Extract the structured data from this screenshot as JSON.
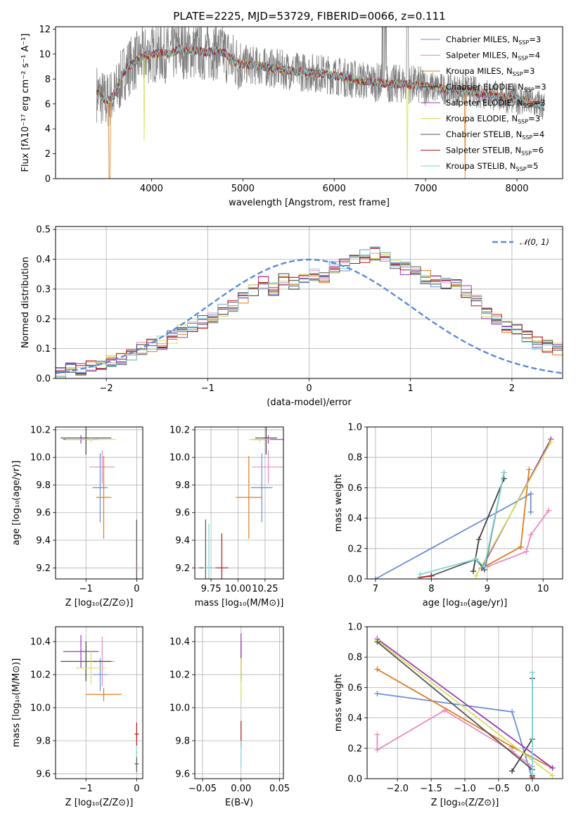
{
  "figure": {
    "title": "PLATE=2225, MJD=53729, FIBERID=0066, z=0.111"
  },
  "palette": {
    "chabrier_miles": "#6b8fd6",
    "salpeter_miles": "#e88ac0",
    "kroupa_miles": "#e07b20",
    "chabrier_elodie": "#3f3f3f",
    "salpeter_elodie": "#9b37b6",
    "kroupa_elodie": "#d4e25a",
    "chabrier_stelib": "#555555",
    "salpeter_stelib": "#b01a1a",
    "kroupa_stelib": "#7fd6d6",
    "gauss": "#5b8bd9",
    "data": "#808080",
    "grid": "#b0b0b0"
  },
  "chart_data": [
    {
      "id": "spectrum",
      "type": "line",
      "xlabel": "wavelength [Angstrom, rest frame]",
      "ylabel": "Flux [fλ10⁻¹⁷ erg cm⁻² s⁻¹ A⁻¹]",
      "xlim": [
        2950,
        8500
      ],
      "ylim": [
        0,
        12.2
      ],
      "xticks": [
        4000,
        5000,
        6000,
        7000,
        8000
      ],
      "yticks": [
        0,
        2,
        4,
        6,
        8,
        10,
        12
      ],
      "grid": false,
      "legend_position": "top-right",
      "continuum": {
        "x": [
          3400,
          3500,
          3600,
          3700,
          3800,
          3900,
          4000,
          4100,
          4200,
          4300,
          4400,
          4500,
          4600,
          4700,
          4800,
          4900,
          5000,
          5200,
          5400,
          5600,
          5800,
          6000,
          6200,
          6400,
          6600,
          6800,
          7000,
          7200,
          7400,
          7600,
          7800,
          8000,
          8200,
          8300
        ],
        "y": [
          6.9,
          6.2,
          6.7,
          8.6,
          9.3,
          9.8,
          10.0,
          10.1,
          10.0,
          10.4,
          10.3,
          10.3,
          10.1,
          10.3,
          10.1,
          9.4,
          9.2,
          9.0,
          8.8,
          8.6,
          8.5,
          8.3,
          8.0,
          7.8,
          7.6,
          7.6,
          7.4,
          7.2,
          7.1,
          6.9,
          6.6,
          6.4,
          6.0,
          5.8
        ]
      },
      "model_dips": [
        {
          "series": "kroupa_miles",
          "x": 3540,
          "y": 0
        },
        {
          "series": "kroupa_elodie",
          "x": 3920,
          "y": 3.0
        },
        {
          "series": "kroupa_elodie",
          "x": 6800,
          "y": 0
        },
        {
          "series": "kroupa_miles",
          "x": 7430,
          "y": 0
        }
      ],
      "series": [
        {
          "name": "Chabrier MILES, N",
          "sub": "SSP",
          "suffix": "=3",
          "color_key": "chabrier_miles"
        },
        {
          "name": "Salpeter MILES, N",
          "sub": "SSP",
          "suffix": "=4",
          "color_key": "salpeter_miles"
        },
        {
          "name": "Kroupa MILES, N",
          "sub": "SSP",
          "suffix": "=3",
          "color_key": "kroupa_miles"
        },
        {
          "name": "Chabrier ELODIE, N",
          "sub": "SSP",
          "suffix": "=3",
          "color_key": "chabrier_elodie"
        },
        {
          "name": "Salpeter ELODIE, N",
          "sub": "SSP",
          "suffix": "=3",
          "color_key": "salpeter_elodie"
        },
        {
          "name": "Kroupa ELODIE, N",
          "sub": "SSP",
          "suffix": "=3",
          "color_key": "kroupa_elodie"
        },
        {
          "name": "Chabrier STELIB, N",
          "sub": "SSP",
          "suffix": "=4",
          "color_key": "chabrier_stelib"
        },
        {
          "name": "Salpeter STELIB, N",
          "sub": "SSP",
          "suffix": "=6",
          "color_key": "salpeter_stelib"
        },
        {
          "name": "Kroupa STELIB, N",
          "sub": "SSP",
          "suffix": "=5",
          "color_key": "kroupa_stelib"
        }
      ]
    },
    {
      "id": "residuals",
      "type": "histogram",
      "xlabel": "(data-model)/error",
      "ylabel": "Normed distribution",
      "xlim": [
        -2.5,
        2.5
      ],
      "ylim": [
        0,
        0.51
      ],
      "xticks": [
        -2,
        -1,
        0,
        1,
        2
      ],
      "yticks": [
        0.0,
        0.1,
        0.2,
        0.3,
        0.4,
        0.5
      ],
      "grid": true,
      "legend": "𝒩(0, 1)",
      "bin_width": 0.1,
      "bins_start": -2.5,
      "mean_values": [
        0.02,
        0.03,
        0.03,
        0.04,
        0.05,
        0.06,
        0.065,
        0.08,
        0.1,
        0.11,
        0.12,
        0.14,
        0.16,
        0.17,
        0.19,
        0.2,
        0.23,
        0.24,
        0.27,
        0.3,
        0.32,
        0.3,
        0.33,
        0.32,
        0.34,
        0.35,
        0.34,
        0.37,
        0.38,
        0.4,
        0.41,
        0.42,
        0.4,
        0.39,
        0.37,
        0.36,
        0.34,
        0.33,
        0.32,
        0.31,
        0.29,
        0.26,
        0.22,
        0.2,
        0.17,
        0.16,
        0.14,
        0.12,
        0.11,
        0.1,
        0.08,
        0.07,
        0.06,
        0.05,
        0.05,
        0.05,
        0.04,
        0.04,
        0.035,
        0.03,
        0.03,
        0.02
      ]
    },
    {
      "id": "age-vs-z",
      "type": "errorbar",
      "xlabel": "Z [log₁₀(Z/Z⊙)]",
      "ylabel": "age  [log₁₀(age/yr)]",
      "xlim": [
        -1.6,
        0.12
      ],
      "ylim": [
        9.12,
        10.22
      ],
      "xticks": [
        -1,
        0
      ],
      "yticks": [
        9.2,
        9.4,
        9.6,
        9.8,
        10.0,
        10.2
      ],
      "grid": true,
      "points": [
        {
          "color_key": "chabrier_miles",
          "x": -0.72,
          "xerr": 0.15,
          "y": 9.78,
          "yerr": 0.25
        },
        {
          "color_key": "salpeter_miles",
          "x": -0.68,
          "xerr": 0.25,
          "y": 9.93,
          "yerr": 0.12
        },
        {
          "color_key": "kroupa_miles",
          "x": -0.65,
          "xerr": 0.15,
          "y": 9.71,
          "yerr": 0.3
        },
        {
          "color_key": "chabrier_elodie",
          "x": -1.0,
          "xerr": 0.5,
          "y": 10.14,
          "yerr": 0.12
        },
        {
          "color_key": "salpeter_elodie",
          "x": -1.1,
          "xerr": 0.35,
          "y": 10.13,
          "yerr": 0.03
        },
        {
          "color_key": "kroupa_elodie",
          "x": -0.9,
          "xerr": 0.5,
          "y": 10.13,
          "yerr": 0.02
        },
        {
          "color_key": "chabrier_stelib",
          "x": 0.0,
          "xerr": 0.01,
          "y": 9.2,
          "yerr": 0.35
        },
        {
          "color_key": "salpeter_stelib",
          "x": 0.0,
          "xerr": 0.01,
          "y": 9.2,
          "yerr": 0.02
        },
        {
          "color_key": "kroupa_stelib",
          "x": 0.01,
          "xerr": 0.01,
          "y": 9.2,
          "yerr": 0.02
        }
      ]
    },
    {
      "id": "age-vs-mass",
      "type": "errorbar",
      "xlabel": "mass [log₁₀(M/M⊙)]",
      "xlim": [
        9.6,
        10.42
      ],
      "ylim": [
        9.12,
        10.22
      ],
      "xticks": [
        9.75,
        10.0,
        10.25
      ],
      "xticklabels": [
        "9.75",
        "10.00",
        "10.25"
      ],
      "yticks": [
        9.2,
        9.4,
        9.6,
        9.8,
        10.0,
        10.2
      ],
      "grid": true,
      "points": [
        {
          "color_key": "chabrier_miles",
          "x": 10.22,
          "xerr": 0.1,
          "y": 9.78,
          "yerr": 0.25
        },
        {
          "color_key": "salpeter_miles",
          "x": 10.28,
          "xerr": 0.15,
          "y": 9.93,
          "yerr": 0.12
        },
        {
          "color_key": "kroupa_miles",
          "x": 10.1,
          "xerr": 0.12,
          "y": 9.71,
          "yerr": 0.3
        },
        {
          "color_key": "chabrier_elodie",
          "x": 10.26,
          "xerr": 0.1,
          "y": 10.14,
          "yerr": 0.12
        },
        {
          "color_key": "salpeter_elodie",
          "x": 10.28,
          "xerr": 0.15,
          "y": 10.13,
          "yerr": 0.03
        },
        {
          "color_key": "kroupa_elodie",
          "x": 10.2,
          "xerr": 0.1,
          "y": 10.13,
          "yerr": 0.02
        },
        {
          "color_key": "chabrier_stelib",
          "x": 9.7,
          "xerr": 0.06,
          "y": 9.2,
          "yerr": 0.35
        },
        {
          "color_key": "salpeter_stelib",
          "x": 9.85,
          "xerr": 0.06,
          "y": 9.2,
          "yerr": 0.25
        },
        {
          "color_key": "kroupa_stelib",
          "x": 9.73,
          "xerr": 0.05,
          "y": 9.2,
          "yerr": 0.32
        }
      ]
    },
    {
      "id": "weight-vs-age",
      "type": "line",
      "xlabel": "age  [log₁₀(age/yr)]",
      "ylabel": "mass weight",
      "xlim": [
        6.85,
        10.35
      ],
      "ylim": [
        0,
        1.0
      ],
      "xticks": [
        7,
        8,
        9,
        10
      ],
      "yticks": [
        0.0,
        0.2,
        0.4,
        0.6,
        0.8,
        1.0
      ],
      "grid": true,
      "series": [
        {
          "color_key": "chabrier_miles",
          "x": [
            7.0,
            9.78,
            9.78
          ],
          "y": [
            0.0,
            0.56,
            0.44
          ]
        },
        {
          "color_key": "salpeter_miles",
          "x": [
            9.0,
            9.7,
            9.78,
            10.1
          ],
          "y": [
            0.08,
            0.18,
            0.29,
            0.45
          ]
        },
        {
          "color_key": "kroupa_miles",
          "x": [
            8.9,
            9.6,
            9.75
          ],
          "y": [
            0.07,
            0.21,
            0.72
          ]
        },
        {
          "color_key": "chabrier_elodie",
          "x": [
            8.75,
            8.85,
            9.3
          ],
          "y": [
            0.05,
            0.26,
            0.66
          ]
        },
        {
          "color_key": "salpeter_elodie",
          "x": [
            8.9,
            10.14
          ],
          "y": [
            0.07,
            0.92
          ]
        },
        {
          "color_key": "kroupa_elodie",
          "x": [
            8.8,
            10.14
          ],
          "y": [
            0.02,
            0.9
          ]
        },
        {
          "color_key": "chabrier_stelib",
          "x": [
            8.0,
            8.8,
            8.95,
            9.3
          ],
          "y": [
            0.02,
            0.13,
            0.06,
            0.7
          ]
        },
        {
          "color_key": "salpeter_stelib",
          "x": [
            7.8,
            8.0
          ],
          "y": [
            0.01,
            0.02
          ]
        },
        {
          "color_key": "kroupa_stelib",
          "x": [
            7.8,
            8.8,
            8.95,
            9.3
          ],
          "y": [
            0.03,
            0.13,
            0.08,
            0.7
          ]
        }
      ]
    },
    {
      "id": "mass-vs-z",
      "type": "errorbar",
      "xlabel": "Z [log₁₀(Z/Z⊙)]",
      "ylabel": "mass [log₁₀(M/M⊙)]",
      "xlim": [
        -1.6,
        0.12
      ],
      "ylim": [
        9.57,
        10.49
      ],
      "xticks": [
        -1,
        0
      ],
      "yticks": [
        9.6,
        9.8,
        10.0,
        10.2,
        10.4
      ],
      "grid": true,
      "points": [
        {
          "color_key": "chabrier_miles",
          "x": -0.72,
          "xerr": 0.15,
          "y": 10.2,
          "yerr": 0.1
        },
        {
          "color_key": "salpeter_miles",
          "x": -0.68,
          "xerr": 0.25,
          "y": 10.28,
          "yerr": 0.15
        },
        {
          "color_key": "kroupa_miles",
          "x": -0.65,
          "xerr": 0.35,
          "y": 10.08,
          "yerr": 0.04
        },
        {
          "color_key": "chabrier_elodie",
          "x": -1.0,
          "xerr": 0.5,
          "y": 10.28,
          "yerr": 0.12
        },
        {
          "color_key": "salpeter_elodie",
          "x": -1.1,
          "xerr": 0.35,
          "y": 10.34,
          "yerr": 0.1
        },
        {
          "color_key": "kroupa_elodie",
          "x": -0.9,
          "xerr": 0.3,
          "y": 10.24,
          "yerr": 0.1
        },
        {
          "color_key": "chabrier_stelib",
          "x": 0.0,
          "xerr": 0.04,
          "y": 9.66,
          "yerr": 0.05
        },
        {
          "color_key": "salpeter_stelib",
          "x": 0.0,
          "xerr": 0.04,
          "y": 9.84,
          "yerr": 0.07
        },
        {
          "color_key": "kroupa_stelib",
          "x": 0.0,
          "xerr": 0.02,
          "y": 9.73,
          "yerr": 0.03
        }
      ]
    },
    {
      "id": "mass-vs-ebv",
      "type": "errorbar",
      "xlabel": "E(B-V)",
      "xlim": [
        -0.06,
        0.055
      ],
      "ylim": [
        9.57,
        10.49
      ],
      "xticks": [
        -0.05,
        0.0,
        0.05
      ],
      "xticklabels": [
        "−0.05",
        "0.00",
        "0.05"
      ],
      "yticks": [
        9.6,
        9.8,
        10.0,
        10.2,
        10.4
      ],
      "grid": true,
      "points": [
        {
          "color_key": "chabrier_elodie",
          "x": 0.0,
          "xerr": 0.0,
          "y": 10.28,
          "yerr": 0.12
        },
        {
          "color_key": "salpeter_elodie",
          "x": 0.0,
          "xerr": 0.0,
          "y": 10.34,
          "yerr": 0.11
        },
        {
          "color_key": "kroupa_elodie",
          "x": 0.0,
          "xerr": 0.0,
          "y": 10.17,
          "yerr": 0.13
        },
        {
          "color_key": "salpeter_stelib",
          "x": 0.0,
          "xerr": 0.0,
          "y": 9.84,
          "yerr": 0.08
        },
        {
          "color_key": "kroupa_stelib",
          "x": 0.0,
          "xerr": 0.0,
          "y": 9.72,
          "yerr": 0.08
        }
      ]
    },
    {
      "id": "weight-vs-z",
      "type": "line",
      "xlabel": "Z [log₁₀(Z/Z⊙)]",
      "ylabel": "mass weight",
      "xlim": [
        -2.45,
        0.45
      ],
      "ylim": [
        0,
        1.0
      ],
      "xticks": [
        -2.0,
        -1.5,
        -1.0,
        -0.5,
        0.0
      ],
      "xticklabels": [
        "−2.0",
        "−1.5",
        "−1.0",
        "−0.5",
        "0.0"
      ],
      "yticks": [
        0.0,
        0.2,
        0.4,
        0.6,
        0.8,
        1.0
      ],
      "grid": true,
      "series": [
        {
          "color_key": "chabrier_miles",
          "x": [
            -2.3,
            -0.3,
            0.0
          ],
          "y": [
            0.56,
            0.44,
            0.0
          ]
        },
        {
          "color_key": "salpeter_miles",
          "x": [
            -2.3,
            -2.3,
            -1.3,
            -0.3,
            0.0
          ],
          "y": [
            0.29,
            0.19,
            0.45,
            0.18,
            0.08
          ]
        },
        {
          "color_key": "kroupa_miles",
          "x": [
            -2.3,
            -0.3,
            0.3
          ],
          "y": [
            0.72,
            0.21,
            0.07
          ]
        },
        {
          "color_key": "chabrier_elodie",
          "x": [
            -0.3,
            0.0,
            0.0
          ],
          "y": [
            0.05,
            0.26,
            0.66
          ]
        },
        {
          "color_key": "salpeter_elodie",
          "x": [
            -2.3,
            0.3
          ],
          "y": [
            0.92,
            0.07
          ]
        },
        {
          "color_key": "kroupa_elodie",
          "x": [
            -2.3,
            0.3
          ],
          "y": [
            0.91,
            0.02
          ]
        },
        {
          "color_key": "chabrier_stelib",
          "x": [
            -2.3,
            0.0
          ],
          "y": [
            0.9,
            0.06
          ]
        },
        {
          "color_key": "salpeter_stelib",
          "x": [
            0.0,
            0.0
          ],
          "y": [
            0.02,
            0.01
          ]
        },
        {
          "color_key": "kroupa_stelib",
          "x": [
            0.0,
            0.0,
            0.0
          ],
          "y": [
            0.7,
            0.13,
            0.03
          ]
        }
      ]
    }
  ]
}
